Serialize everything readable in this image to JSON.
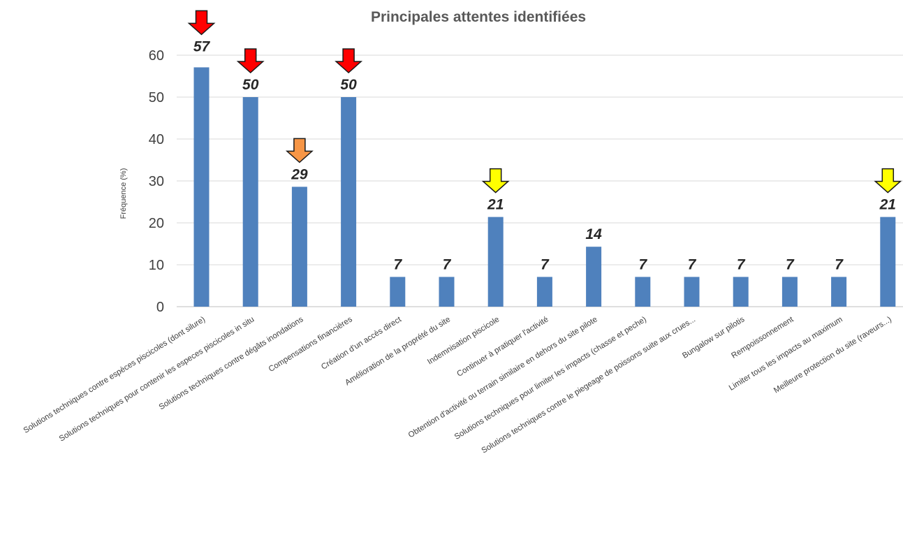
{
  "chart_data": {
    "type": "bar",
    "title": "Principales attentes identifiées",
    "xlabel": "",
    "ylabel": "Fréquence (%)",
    "ylim": [
      0,
      60
    ],
    "yticks": [
      "0",
      "10",
      "20",
      "30",
      "40",
      "50",
      "60"
    ],
    "grid": true,
    "legend": "none",
    "bar_color": "#4F81BD",
    "categories": [
      "Solutions techniques contre espèces piscicoles (dont silure)",
      "Solutions techniques pour contenir les especes piscicoles in situ",
      "Solutions techniques contre dégâts inondations",
      "Compensations financières",
      "Création d'un accès direct",
      "Amélioration de la proprété du site",
      "Indemnisation piscicole",
      "Continuer à pratiquer l'activité",
      "Obtention d'activité ou terrain similaire en dehors du site pilote",
      "Solutions techniques pour limiter les impacts (chasse et peche)",
      "Solutions techniques contre le piegeage de poissons suite aux crues...",
      "Bungalow sur pilotis",
      "Rempoissonnement",
      "Limiter tous les impacts au maximum",
      "Meilleure protection du site (raveurs...)"
    ],
    "values": [
      57.1,
      50,
      28.6,
      50,
      7.1,
      7.1,
      21.4,
      7.1,
      14.3,
      7.1,
      7.1,
      7.1,
      7.1,
      7.1,
      21.4
    ],
    "data_labels": [
      "57",
      "50",
      "29",
      "50",
      "7",
      "7",
      "21",
      "7",
      "14",
      "7",
      "7",
      "7",
      "7",
      "7",
      "21"
    ],
    "annotations": [
      {
        "type": "arrow",
        "category_index": 0,
        "color": "#FF0000"
      },
      {
        "type": "arrow",
        "category_index": 1,
        "color": "#FF0000"
      },
      {
        "type": "arrow",
        "category_index": 2,
        "color": "#F79646"
      },
      {
        "type": "arrow",
        "category_index": 3,
        "color": "#FF0000"
      },
      {
        "type": "arrow",
        "category_index": 6,
        "color": "#FFFF00"
      },
      {
        "type": "arrow",
        "category_index": 14,
        "color": "#FFFF00"
      }
    ]
  }
}
